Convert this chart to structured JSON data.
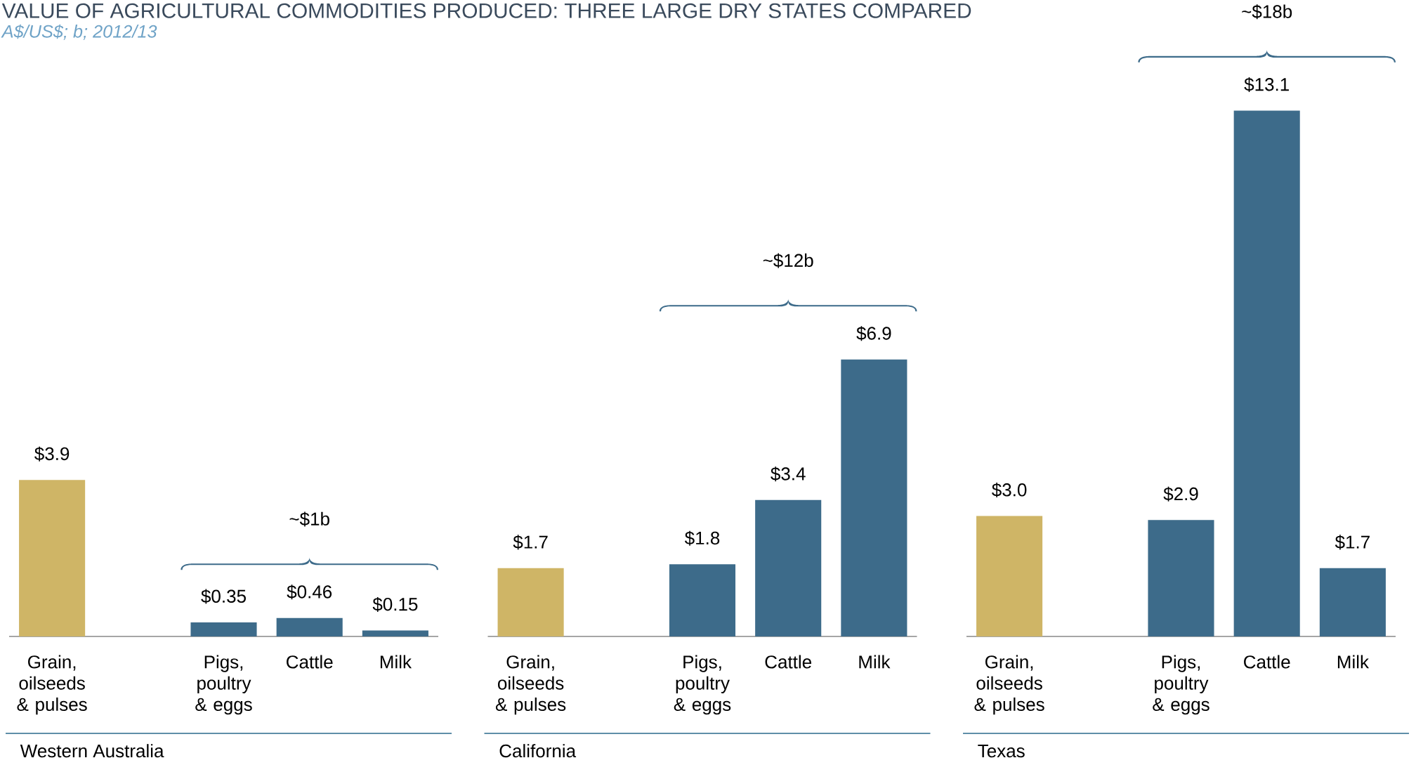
{
  "chart_data": [
    {
      "type": "bar",
      "title": "VALUE OF AGRICULTURAL COMMODITIES PRODUCED: THREE LARGE DRY STATES COMPARED",
      "subtitle": "A$/US$; b; 2012/13",
      "xlabel": "Western Australia",
      "categories": [
        "Grain, oilseeds & pulses",
        null,
        "Pigs, poultry & eggs",
        "Cattle",
        "Milk"
      ],
      "values": [
        3.9,
        null,
        0.35,
        0.46,
        0.15
      ],
      "value_labels": [
        "$3.9",
        null,
        "$0.35",
        "$0.46",
        "$0.15"
      ],
      "colors": [
        "#cfb566",
        null,
        "#3d6b8a",
        "#3d6b8a",
        "#3d6b8a"
      ],
      "annotations": [
        "~$1b"
      ],
      "tick_labels": "x"
    },
    {
      "type": "bar",
      "xlabel": "California",
      "categories": [
        "Grain, oilseeds & pulses",
        null,
        "Pigs, poultry & eggs",
        "Cattle",
        "Milk"
      ],
      "values": [
        1.7,
        null,
        1.8,
        3.4,
        6.9
      ],
      "value_labels": [
        "$1.7",
        null,
        "$1.8",
        "$3.4",
        "$6.9"
      ],
      "colors": [
        "#cfb566",
        null,
        "#3d6b8a",
        "#3d6b8a",
        "#3d6b8a"
      ],
      "annotations": [
        "~$12b"
      ],
      "tick_labels": "x"
    },
    {
      "type": "bar",
      "xlabel": "Texas",
      "categories": [
        "Grain, oilseeds & pulses",
        null,
        "Pigs, poultry & eggs",
        "Cattle",
        "Milk"
      ],
      "values": [
        3.0,
        null,
        2.9,
        13.1,
        1.7
      ],
      "value_labels": [
        "$3.0",
        null,
        "$2.9",
        "$13.1",
        "$1.7"
      ],
      "colors": [
        "#cfb566",
        null,
        "#3d6b8a",
        "#3d6b8a",
        "#3d6b8a"
      ],
      "annotations": [
        "~$18b"
      ],
      "tick_labels": "x"
    }
  ]
}
